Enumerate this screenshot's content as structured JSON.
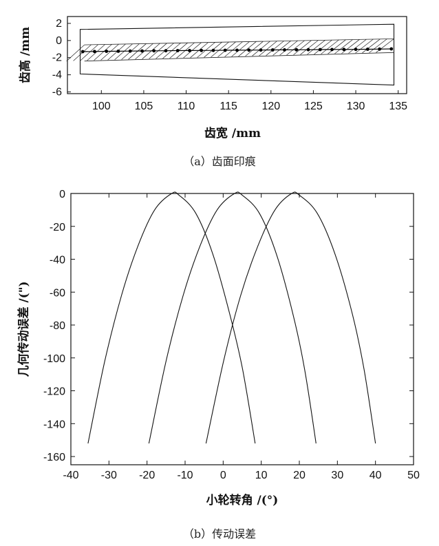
{
  "chart_data": [
    {
      "id": "a",
      "type": "scatter",
      "caption": "（a）齿面印痕",
      "xlabel": "齿宽 /mm",
      "ylabel": "齿高 /mm",
      "xlim": [
        96,
        136
      ],
      "ylim": [
        -6.2,
        2.8
      ],
      "xticks": [
        100,
        105,
        110,
        115,
        120,
        125,
        130,
        135
      ],
      "yticks": [
        2,
        0,
        -2,
        -4,
        -6
      ],
      "outline": [
        [
          97.5,
          1.3
        ],
        [
          134.5,
          1.9
        ],
        [
          134.5,
          -5.2
        ],
        [
          97.5,
          -3.9
        ]
      ],
      "contact_zone": {
        "x_start": 98,
        "x_end": 134.5,
        "left_top": -0.5,
        "left_bottom": -2.4,
        "right_top": 0.2,
        "right_bottom": -1.4
      },
      "contact_path": {
        "x": [
          97.8,
          99.2,
          100.6,
          102.0,
          103.4,
          104.8,
          106.2,
          107.6,
          109.0,
          110.4,
          111.8,
          113.2,
          114.6,
          116.0,
          117.4,
          118.8,
          120.2,
          121.6,
          123.0,
          124.4,
          125.8,
          127.2,
          128.6,
          130.0,
          131.4,
          132.8,
          134.2
        ],
        "y": [
          -1.3,
          -1.28,
          -1.26,
          -1.25,
          -1.23,
          -1.22,
          -1.2,
          -1.19,
          -1.18,
          -1.17,
          -1.16,
          -1.15,
          -1.14,
          -1.13,
          -1.12,
          -1.11,
          -1.1,
          -1.09,
          -1.08,
          -1.07,
          -1.06,
          -1.05,
          -1.04,
          -1.03,
          -1.02,
          -1.0,
          -0.98
        ]
      }
    },
    {
      "id": "b",
      "type": "line",
      "caption": "（b）传动误差",
      "xlabel": "小轮转角 /(°)",
      "ylabel": "几何传动误差 /(\")",
      "xlim": [
        -40,
        50
      ],
      "ylim": [
        -165,
        0
      ],
      "xticks": [
        -40,
        -30,
        -20,
        -10,
        0,
        10,
        20,
        30,
        40,
        50
      ],
      "yticks": [
        0,
        -20,
        -40,
        -60,
        -80,
        -100,
        -120,
        -140,
        -160
      ],
      "series": [
        {
          "x": [
            -35.5,
            -31.1,
            -26.7,
            -22.4,
            -18.0,
            -13.5,
            -11.6,
            -7.2,
            -2.7,
            1.8,
            5.1,
            8.4
          ],
          "y": [
            -152,
            -102,
            -62,
            -32,
            -10,
            0,
            -1,
            -12,
            -37,
            -74,
            -107,
            -152
          ]
        },
        {
          "x": [
            -19.5,
            -15.0,
            -10.5,
            -6.1,
            -1.6,
            3.0,
            5.0,
            9.5,
            14.0,
            18.4,
            21.4,
            24.4
          ],
          "y": [
            -152,
            -102,
            -62,
            -32,
            -10,
            0,
            -1,
            -12,
            -37,
            -74,
            -107,
            -152
          ]
        },
        {
          "x": [
            -4.5,
            0.1,
            4.6,
            9.1,
            13.6,
            18.0,
            20.0,
            24.7,
            29.4,
            34.0,
            37.0,
            40.0
          ],
          "y": [
            -152,
            -102,
            -62,
            -32,
            -10,
            0,
            -1,
            -12,
            -37,
            -74,
            -107,
            -152
          ]
        }
      ]
    }
  ]
}
